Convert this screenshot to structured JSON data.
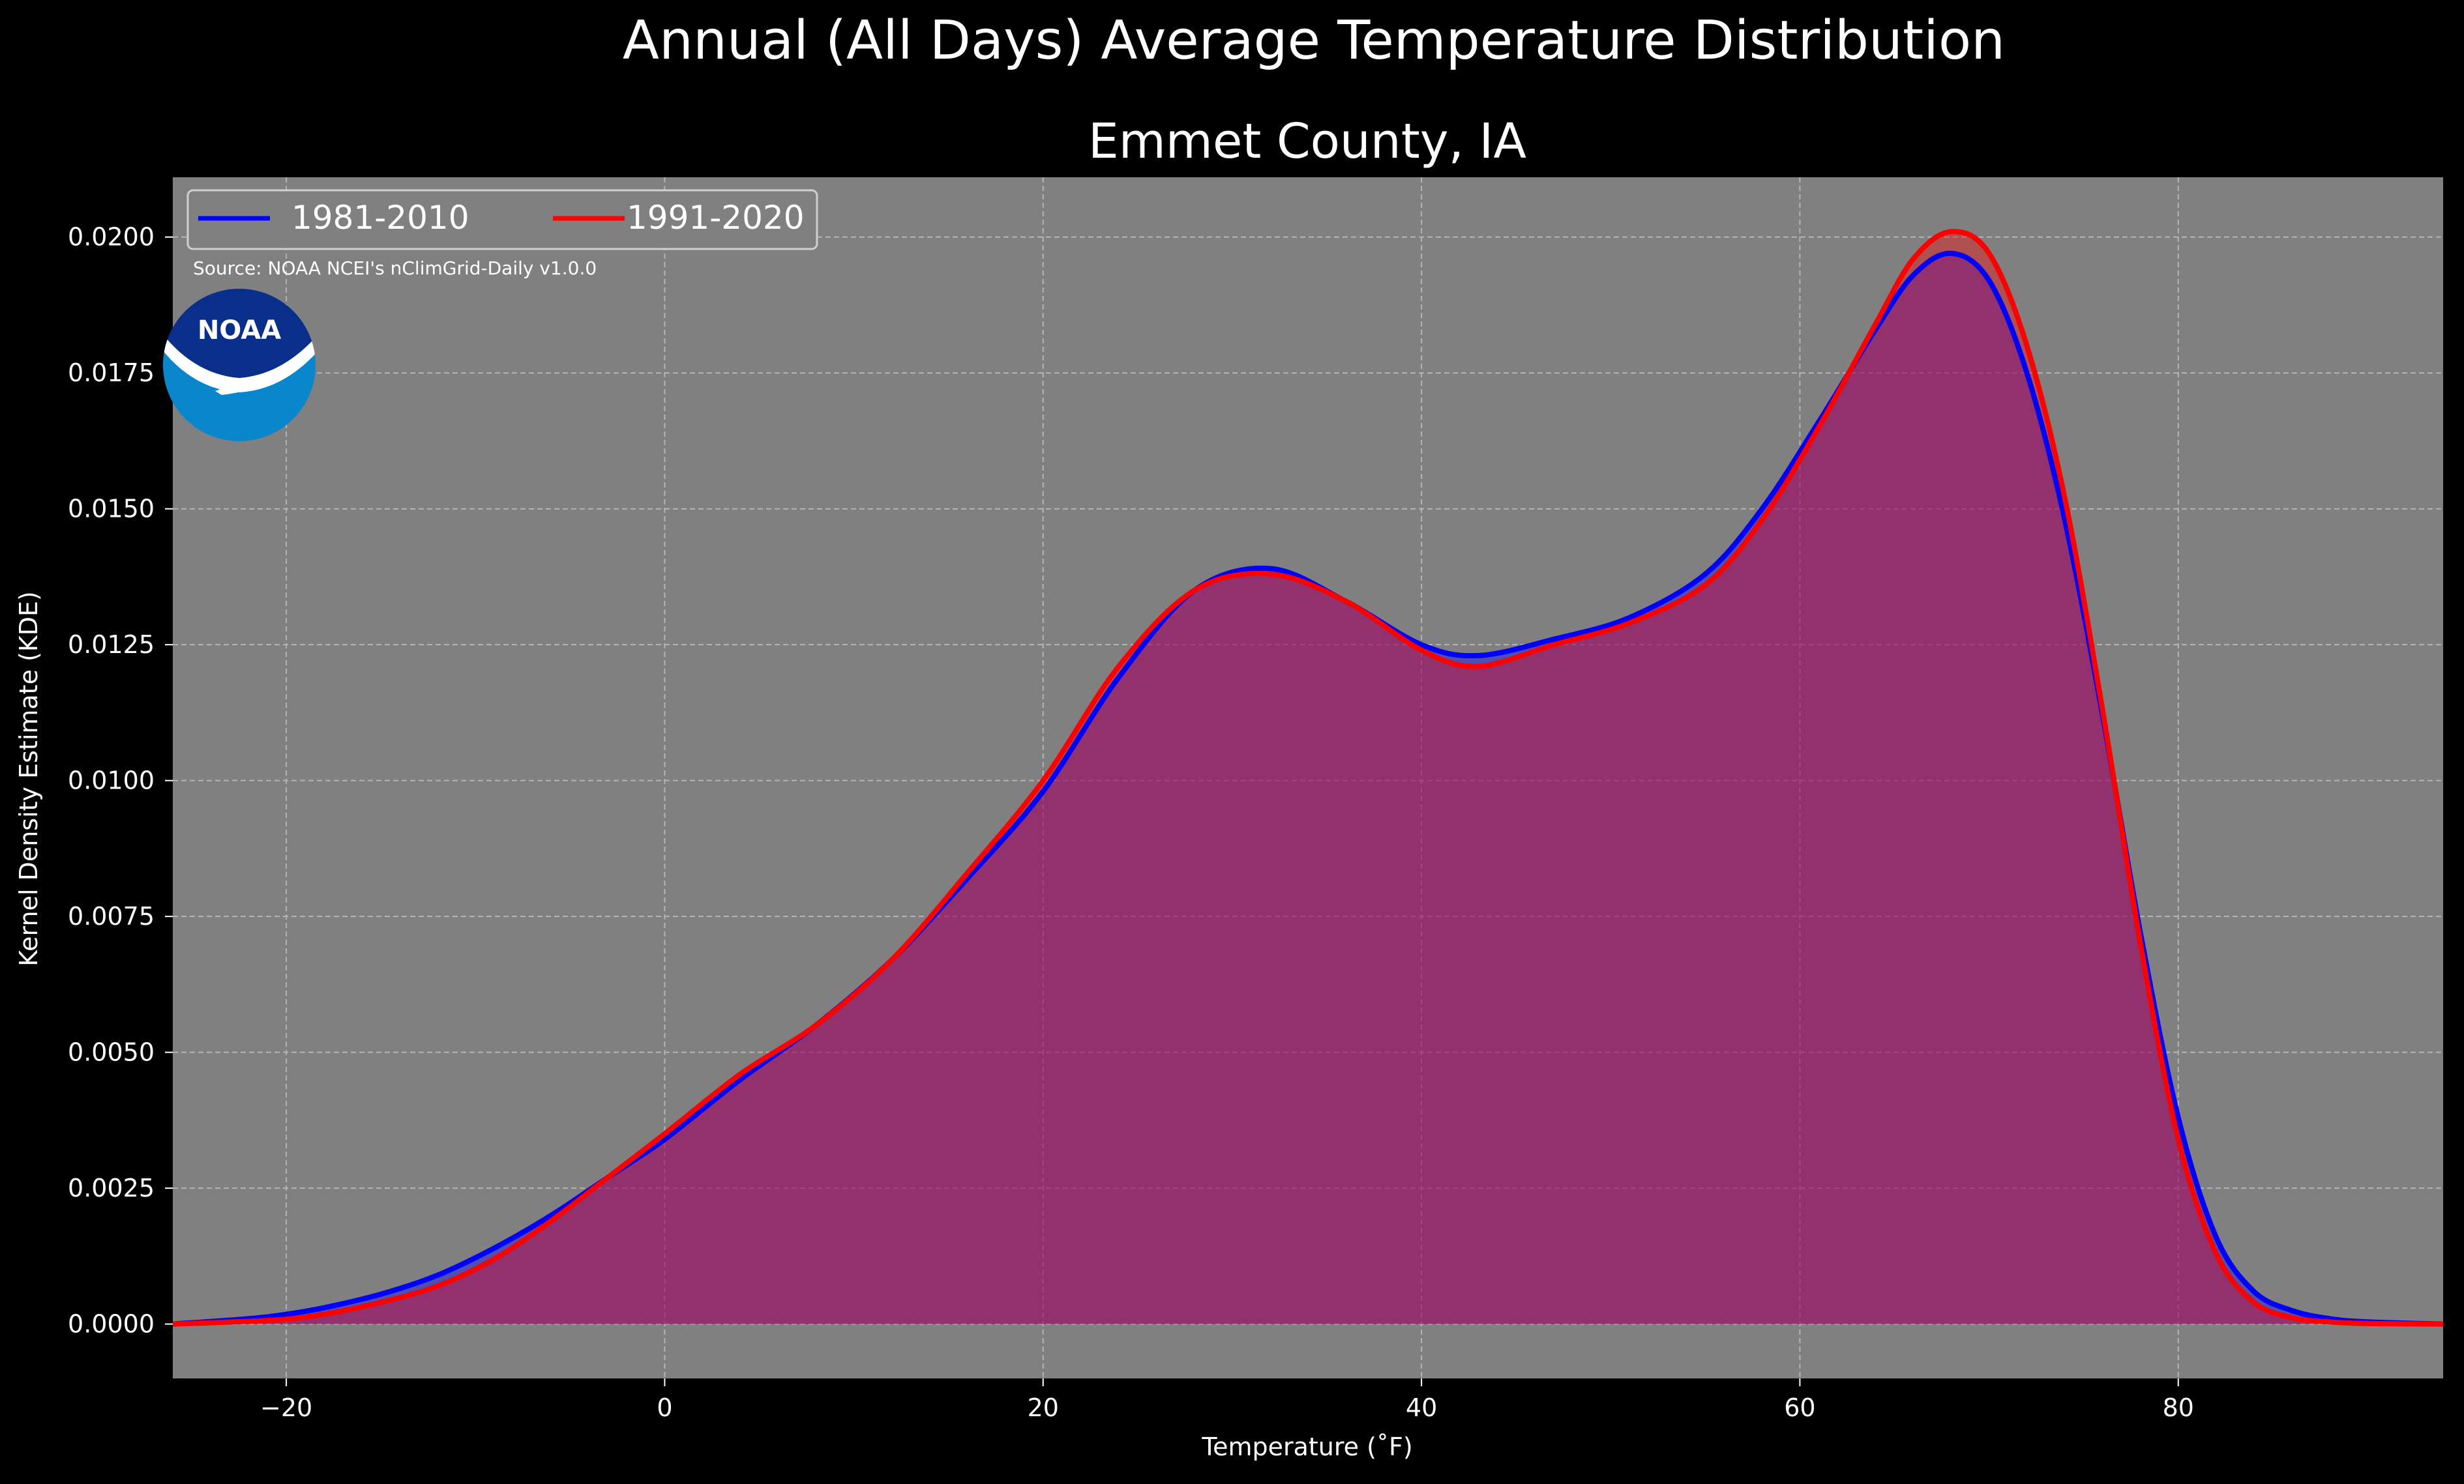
{
  "figure": {
    "suptitle": "Annual (All Days) Average Temperature Distribution",
    "title": "Emmet County, IA",
    "source": "Source: NOAA NCEI's nClimGrid-Daily v1.0.0",
    "logo_text": "NOAA"
  },
  "colors": {
    "figure_bg": "#000000",
    "axes_bg": "#808080",
    "series_1981": "#0000ff",
    "series_1991": "#ff0000",
    "fill_1981": "#0000ff",
    "fill_1991": "#ff0000",
    "text": "#ffffff",
    "logo_navy": "#0a2f8a",
    "logo_blue": "#0a87cc"
  },
  "chart_data": {
    "type": "area",
    "title": "Emmet County, IA",
    "xlabel": "Temperature (˚F)",
    "ylabel": "Kernel Density Estimate (KDE)",
    "xlim": [
      -26,
      94
    ],
    "ylim": [
      -0.001,
      0.0211
    ],
    "xticks": [
      -20,
      0,
      20,
      40,
      60,
      80
    ],
    "xtick_labels": [
      "−20",
      "0",
      "20",
      "40",
      "60",
      "80"
    ],
    "yticks": [
      0,
      0.0025,
      0.005,
      0.0075,
      0.01,
      0.0125,
      0.015,
      0.0175,
      0.02
    ],
    "ytick_labels": [
      "0.0000",
      "0.0025",
      "0.0050",
      "0.0075",
      "0.0100",
      "0.0125",
      "0.0150",
      "0.0175",
      "0.0200"
    ],
    "grid": true,
    "legend_position": "upper-left",
    "series": [
      {
        "name": "1981-2010",
        "x": [
          -26,
          -22,
          -20,
          -18,
          -15,
          -12,
          -9,
          -6,
          -3,
          0,
          4,
          8,
          12,
          16,
          20,
          24,
          28,
          32,
          36,
          40,
          43,
          47,
          51,
          55,
          58,
          61,
          64,
          66,
          68,
          70,
          72,
          74,
          76,
          78,
          80,
          82,
          84,
          86,
          88,
          90,
          94
        ],
        "y": [
          0.0,
          0.0001,
          0.00018,
          0.0003,
          0.00055,
          0.0009,
          0.0014,
          0.002,
          0.0027,
          0.0034,
          0.0045,
          0.0055,
          0.0067,
          0.0082,
          0.0098,
          0.0119,
          0.0135,
          0.0139,
          0.0133,
          0.0125,
          0.0123,
          0.0126,
          0.013,
          0.0138,
          0.015,
          0.0166,
          0.0183,
          0.0193,
          0.0197,
          0.0192,
          0.0175,
          0.0148,
          0.0112,
          0.0072,
          0.0038,
          0.0016,
          0.0006,
          0.00025,
          0.0001,
          4e-05,
          0.0
        ]
      },
      {
        "name": "1991-2020",
        "x": [
          -26,
          -22,
          -20,
          -18,
          -15,
          -12,
          -9,
          -6,
          -3,
          0,
          4,
          8,
          12,
          16,
          20,
          24,
          28,
          32,
          36,
          40,
          43,
          47,
          51,
          55,
          58,
          61,
          64,
          66,
          68,
          70,
          72,
          74,
          76,
          78,
          80,
          82,
          84,
          86,
          88,
          90,
          94
        ],
        "y": [
          0.0,
          5e-05,
          9e-05,
          0.00018,
          0.0004,
          0.0007,
          0.0012,
          0.0019,
          0.0027,
          0.0035,
          0.0046,
          0.0055,
          0.0067,
          0.0083,
          0.01,
          0.0121,
          0.0135,
          0.0138,
          0.0133,
          0.0124,
          0.0121,
          0.0125,
          0.0129,
          0.0136,
          0.0148,
          0.0165,
          0.0184,
          0.0196,
          0.0201,
          0.0197,
          0.018,
          0.0152,
          0.0113,
          0.007,
          0.0034,
          0.0013,
          0.0004,
          0.00012,
          4e-05,
          1e-05,
          0.0
        ]
      }
    ]
  }
}
